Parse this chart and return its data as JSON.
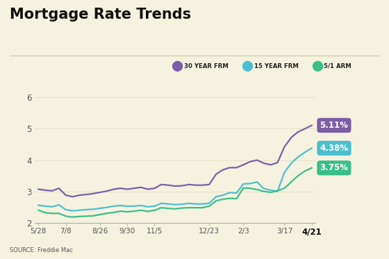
{
  "title": "Mortgage Rate Trends",
  "background_color": "#f5f2e0",
  "source_text": "SOURCE: Freddie Mac",
  "ylim": [
    2.0,
    6.3
  ],
  "yticks": [
    2,
    3,
    4,
    5,
    6
  ],
  "x_labels": [
    "5/28",
    "7/8",
    "8/26",
    "9/30",
    "11/5",
    "12/23",
    "2/3",
    "3/17",
    "4/21"
  ],
  "legend": [
    {
      "label": "30 YEAR FRM",
      "color": "#7b5ea7"
    },
    {
      "label": "15 YEAR FRM",
      "color": "#4bbfcf"
    },
    {
      "label": "5/1 ARM",
      "color": "#3abf8a"
    }
  ],
  "annotations": [
    {
      "text": "5.11%",
      "color": "#7b5ea7"
    },
    {
      "text": "4.38%",
      "color": "#4bbfcf"
    },
    {
      "text": "3.75%",
      "color": "#3abf8a"
    }
  ],
  "series_30yr": [
    3.07,
    3.04,
    3.02,
    3.1,
    2.88,
    2.83,
    2.88,
    2.9,
    2.93,
    2.97,
    3.01,
    3.07,
    3.1,
    3.07,
    3.1,
    3.13,
    3.07,
    3.1,
    3.22,
    3.2,
    3.17,
    3.18,
    3.22,
    3.2,
    3.2,
    3.22,
    3.55,
    3.69,
    3.76,
    3.76,
    3.85,
    3.95,
    4.0,
    3.9,
    3.85,
    3.92,
    4.42,
    4.72,
    4.9,
    5.0,
    5.11
  ],
  "series_15yr": [
    2.56,
    2.53,
    2.51,
    2.57,
    2.42,
    2.38,
    2.4,
    2.42,
    2.43,
    2.46,
    2.49,
    2.53,
    2.55,
    2.53,
    2.53,
    2.55,
    2.51,
    2.53,
    2.62,
    2.6,
    2.58,
    2.59,
    2.62,
    2.6,
    2.6,
    2.62,
    2.83,
    2.88,
    2.96,
    2.95,
    3.24,
    3.25,
    3.3,
    3.09,
    3.04,
    3.0,
    3.6,
    3.9,
    4.1,
    4.25,
    4.38
  ],
  "series_arm": [
    2.4,
    2.32,
    2.3,
    2.3,
    2.21,
    2.18,
    2.2,
    2.21,
    2.22,
    2.26,
    2.3,
    2.33,
    2.37,
    2.35,
    2.37,
    2.4,
    2.36,
    2.4,
    2.48,
    2.46,
    2.44,
    2.47,
    2.48,
    2.48,
    2.48,
    2.53,
    2.7,
    2.75,
    2.78,
    2.77,
    3.11,
    3.1,
    3.06,
    3.0,
    2.97,
    3.02,
    3.1,
    3.3,
    3.5,
    3.65,
    3.75
  ],
  "label_indices": [
    0,
    4,
    9,
    13,
    17,
    25,
    30,
    36,
    40
  ]
}
